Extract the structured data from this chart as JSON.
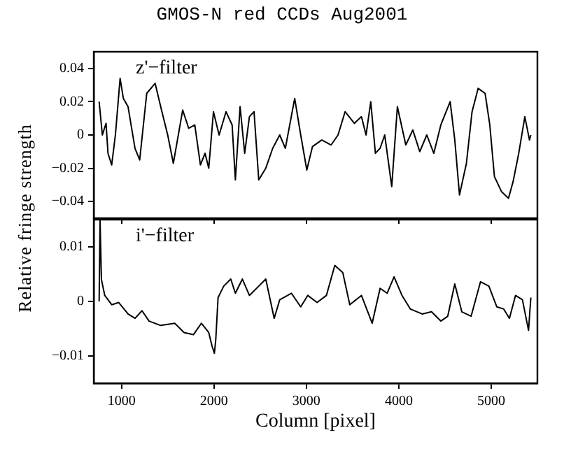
{
  "chart_data": [
    {
      "type": "line",
      "title": "GMOS-N red CCDs Aug2001",
      "ylabel": "Relative fringe strength",
      "annotations": [
        "z'−filter"
      ],
      "tick_labels": "y",
      "xlim": [
        700,
        5500
      ],
      "xticks": [
        1000,
        2000,
        3000,
        4000,
        5000
      ],
      "ylim": [
        -0.05,
        0.05
      ],
      "yticks": [
        -0.04,
        -0.02,
        0,
        0.02,
        0.04
      ],
      "series": [
        {
          "color": "#000000",
          "x": [
            758,
            793,
            833,
            854,
            894,
            934,
            985,
            1020,
            1071,
            1146,
            1197,
            1273,
            1364,
            1424,
            1500,
            1561,
            1662,
            1727,
            1793,
            1854,
            1904,
            1944,
            1995,
            2056,
            2131,
            2197,
            2232,
            2283,
            2333,
            2384,
            2434,
            2485,
            2561,
            2636,
            2712,
            2773,
            2874,
            2939,
            3005,
            3066,
            3167,
            3268,
            3343,
            3419,
            3520,
            3596,
            3646,
            3697,
            3747,
            3798,
            3848,
            3924,
            3985,
            4076,
            4152,
            4227,
            4303,
            4379,
            4455,
            4556,
            4606,
            4657,
            4732,
            4793,
            4859,
            4934,
            4985,
            5035,
            5111,
            5187,
            5237,
            5298,
            5364,
            5414,
            5429
          ],
          "values": [
            0.02,
            0,
            0.007,
            -0.011,
            -0.018,
            0,
            0.034,
            0.022,
            0.017,
            -0.008,
            -0.015,
            0.025,
            0.031,
            0.017,
            0,
            -0.017,
            0.015,
            0.004,
            0.006,
            -0.018,
            -0.011,
            -0.02,
            0.014,
            0,
            0.014,
            0.006,
            -0.027,
            0.017,
            -0.011,
            0.011,
            0.014,
            -0.027,
            -0.02,
            -0.008,
            0,
            -0.008,
            0.022,
            0,
            -0.021,
            -0.007,
            -0.003,
            -0.006,
            0,
            0.014,
            0.007,
            0.011,
            0,
            0.02,
            -0.011,
            -0.008,
            0,
            -0.031,
            0.017,
            -0.006,
            0.003,
            -0.01,
            0,
            -0.011,
            0.006,
            0.02,
            -0.003,
            -0.036,
            -0.017,
            0.014,
            0.028,
            0.025,
            0.006,
            -0.025,
            -0.034,
            -0.038,
            -0.028,
            -0.011,
            0.011,
            -0.003,
            0
          ]
        }
      ]
    },
    {
      "type": "line",
      "xlabel": "Column [pixel]",
      "annotations": [
        "i'−filter"
      ],
      "xlim": [
        700,
        5500
      ],
      "xticks": [
        1000,
        2000,
        3000,
        4000,
        5000
      ],
      "ylim": [
        -0.015,
        0.015
      ],
      "yticks": [
        -0.01,
        0,
        0.01
      ],
      "series": [
        {
          "color": "#000000",
          "x": [
            758,
            768,
            783,
            819,
            894,
            970,
            1071,
            1146,
            1222,
            1298,
            1424,
            1576,
            1677,
            1778,
            1864,
            1944,
            1980,
            2005,
            2020,
            2045,
            2106,
            2182,
            2232,
            2308,
            2384,
            2485,
            2561,
            2652,
            2712,
            2838,
            2939,
            3015,
            3116,
            3217,
            3308,
            3394,
            3470,
            3596,
            3712,
            3798,
            3874,
            3949,
            4035,
            4126,
            4253,
            4354,
            4455,
            4530,
            4606,
            4682,
            4783,
            4884,
            4975,
            5061,
            5136,
            5197,
            5263,
            5338,
            5404,
            5429
          ],
          "values": [
            0,
            0.0148,
            0.004,
            0.0011,
            -0.0006,
            -0.0002,
            -0.0023,
            -0.0031,
            -0.0017,
            -0.0036,
            -0.0044,
            -0.004,
            -0.0057,
            -0.0061,
            -0.004,
            -0.0057,
            -0.0082,
            -0.0095,
            -0.007,
            0.0007,
            0.0028,
            0.0041,
            0.0015,
            0.0041,
            0.0011,
            0.0028,
            0.0041,
            -0.0031,
            0.0003,
            0.0015,
            -0.001,
            0.0011,
            -0.0002,
            0.0011,
            0.0066,
            0.0053,
            -0.0006,
            0.0011,
            -0.004,
            0.0024,
            0.0015,
            0.0045,
            0.0011,
            -0.0014,
            -0.0023,
            -0.0019,
            -0.0036,
            -0.0027,
            0.0032,
            -0.0019,
            -0.0027,
            0.0036,
            0.0028,
            -0.001,
            -0.0014,
            -0.0031,
            0.0011,
            0.0003,
            -0.0053,
            0.0007
          ]
        }
      ]
    }
  ]
}
